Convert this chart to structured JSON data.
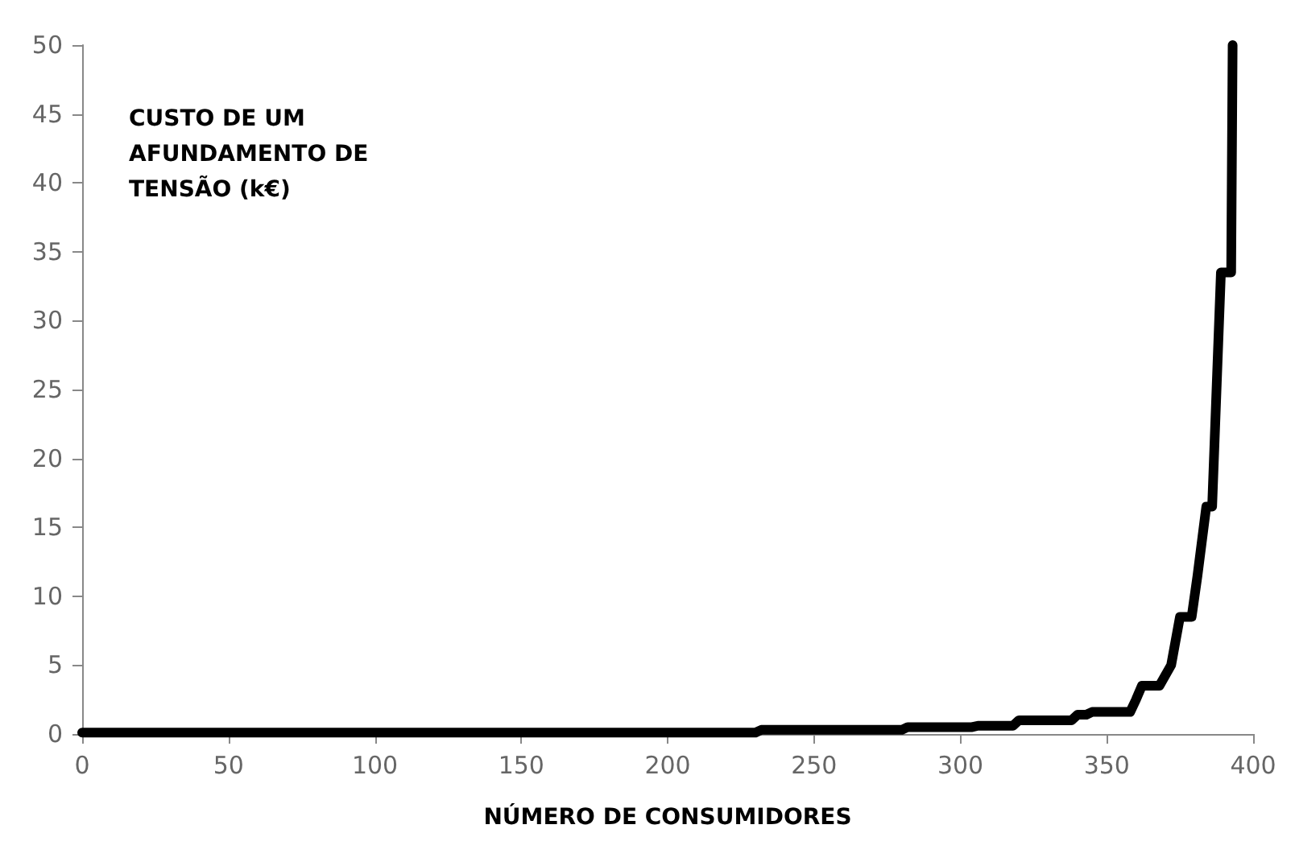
{
  "chart_data": {
    "type": "line",
    "ylabel": "CUSTO DE UM\nAFUNDAMENTO DE\nTENSÃO (k€)",
    "xlabel": "NÚMERO DE CONSUMIDORES",
    "x": [
      0,
      230,
      232,
      280,
      282,
      304,
      306,
      318,
      320,
      338,
      340,
      343,
      345,
      358,
      360,
      362,
      368,
      372,
      375,
      379,
      381,
      384,
      386,
      389,
      390,
      392.5,
      393
    ],
    "series": [
      {
        "color": "#000000",
        "values": [
          0.1,
          0.1,
          0.3,
          0.3,
          0.5,
          0.5,
          0.6,
          0.6,
          1,
          1,
          1.4,
          1.4,
          1.6,
          1.6,
          2.5,
          3.5,
          3.5,
          5,
          8.5,
          8.5,
          11.5,
          16.5,
          16.5,
          33.5,
          33.5,
          33.5,
          50
        ]
      }
    ],
    "xlim": [
      0,
      400
    ],
    "xticks": [
      0,
      50,
      100,
      150,
      200,
      250,
      300,
      350,
      400
    ],
    "ylim": [
      0,
      50
    ],
    "yticks": [
      0,
      5,
      10,
      15,
      20,
      25,
      30,
      35,
      40,
      45,
      50
    ],
    "grid": false,
    "marker": "none",
    "line_style": "solid"
  }
}
